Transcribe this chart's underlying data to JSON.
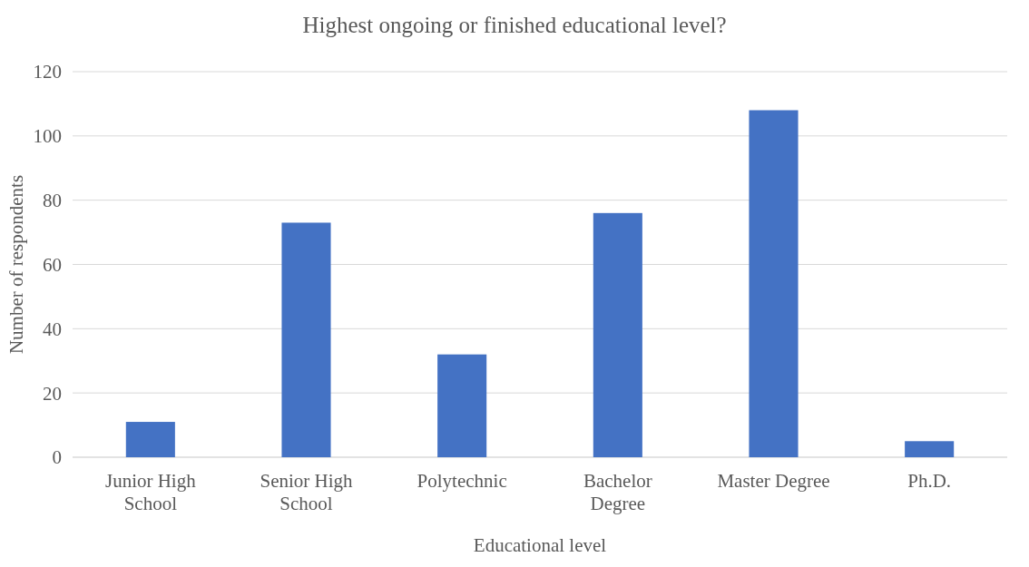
{
  "chart_data": {
    "type": "bar",
    "title": "Highest ongoing or finished educational level?",
    "xlabel": "Educational level",
    "ylabel": "Number of respondents",
    "categories": [
      "Junior High School",
      "Senior High School",
      "Polytechnic",
      "Bachelor Degree",
      "Master Degree",
      "Ph.D."
    ],
    "values": [
      11,
      73,
      32,
      76,
      108,
      5
    ],
    "color": "#4472c4",
    "ylim": [
      0,
      120
    ],
    "yticks": [
      0,
      20,
      40,
      60,
      80,
      100,
      120
    ],
    "grid": "y"
  }
}
